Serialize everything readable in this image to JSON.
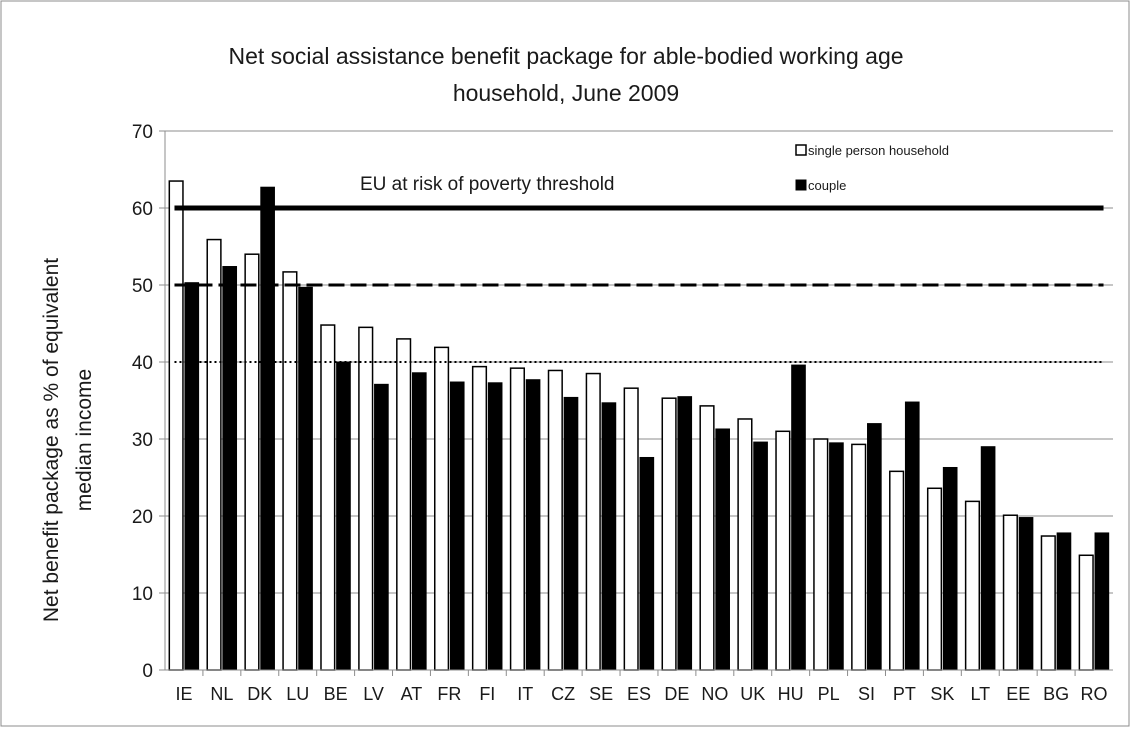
{
  "chart_data": {
    "type": "bar",
    "title_line1": "Net social assistance benefit package for able-bodied working age",
    "title_line2": "household, June 2009",
    "ylabel_line1": "Net benefit package as % of equivalent",
    "ylabel_line2": "median income",
    "xlabel": "",
    "ylim": [
      0,
      70
    ],
    "yticks": [
      0,
      10,
      20,
      30,
      40,
      50,
      60,
      70
    ],
    "grid": true,
    "legend_position": "top-right",
    "categories": [
      "IE",
      "NL",
      "DK",
      "LU",
      "BE",
      "LV",
      "AT",
      "FR",
      "FI",
      "IT",
      "CZ",
      "SE",
      "ES",
      "DE",
      "NO",
      "UK",
      "HU",
      "PL",
      "SI",
      "PT",
      "SK",
      "LT",
      "EE",
      "BG",
      "RO"
    ],
    "series": [
      {
        "name": "single person household",
        "color": "#ffffff",
        "values": [
          63.5,
          55.9,
          54.0,
          51.7,
          44.8,
          44.5,
          43.0,
          41.9,
          39.4,
          39.2,
          38.9,
          38.5,
          36.6,
          35.3,
          34.3,
          32.6,
          31.0,
          30.0,
          29.3,
          25.8,
          23.6,
          21.9,
          20.1,
          17.4,
          14.9
        ]
      },
      {
        "name": "couple",
        "color": "#000000",
        "values": [
          50.3,
          52.4,
          62.7,
          49.7,
          40.0,
          37.1,
          38.6,
          37.4,
          37.3,
          37.7,
          35.4,
          34.7,
          27.6,
          35.5,
          31.3,
          29.6,
          39.6,
          29.5,
          32.0,
          34.8,
          26.3,
          29.0,
          19.8,
          17.8,
          17.8
        ]
      }
    ],
    "reference_lines": [
      {
        "value": 60,
        "style": "solid"
      },
      {
        "value": 50,
        "style": "dashed"
      },
      {
        "value": 40,
        "style": "dotted"
      }
    ],
    "annotation": "EU at risk of poverty threshold"
  }
}
